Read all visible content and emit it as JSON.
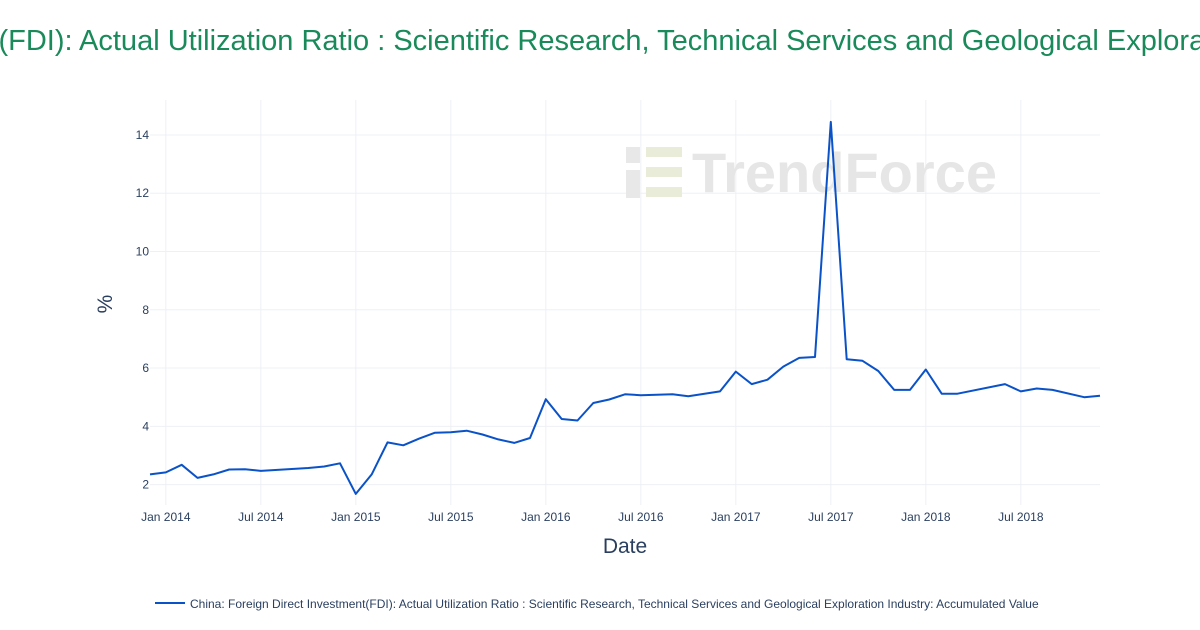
{
  "chart_data": {
    "type": "line",
    "title": "China: Foreign Direct Investment(FDI): Actual Utilization Ratio : Scientific Research, Technical Services and Geological Exploration Industry: Accumulated Value",
    "xlabel": "Date",
    "ylabel": "%",
    "x_tick_labels": [
      "Jan 2014",
      "Jul 2014",
      "Jan 2015",
      "Jul 2015",
      "Jan 2016",
      "Jul 2016",
      "Jan 2017",
      "Jul 2017",
      "Jan 2018",
      "Jul 2018"
    ],
    "y_ticks": [
      2,
      4,
      6,
      8,
      10,
      12,
      14
    ],
    "ylim": [
      1.3,
      15.2
    ],
    "xlim": [
      "2014-01",
      "2018-12"
    ],
    "grid": true,
    "legend_position": "bottom",
    "series": [
      {
        "name": "China: Foreign Direct Investment(FDI): Actual Utilization Ratio : Scientific Research, Technical Services and Geological Exploration Industry: Accumulated Value",
        "color": "#0a52c8",
        "x": [
          "2013-12",
          "2014-01",
          "2014-02",
          "2014-03",
          "2014-04",
          "2014-05",
          "2014-06",
          "2014-07",
          "2014-10",
          "2014-11",
          "2014-12",
          "2015-01",
          "2015-02",
          "2015-03",
          "2015-04",
          "2015-05",
          "2015-06",
          "2015-07",
          "2015-08",
          "2015-09",
          "2015-10",
          "2015-11",
          "2015-12",
          "2016-01",
          "2016-02",
          "2016-03",
          "2016-04",
          "2016-05",
          "2016-06",
          "2016-07",
          "2016-09",
          "2016-10",
          "2016-12",
          "2017-01",
          "2017-02",
          "2017-03",
          "2017-04",
          "2017-05",
          "2017-06",
          "2017-07",
          "2017-08",
          "2017-09",
          "2017-10",
          "2017-11",
          "2017-12",
          "2018-01",
          "2018-02",
          "2018-03",
          "2018-06",
          "2018-07",
          "2018-08",
          "2018-09",
          "2018-11",
          "2018-12"
        ],
        "y": [
          2.35,
          2.42,
          2.68,
          2.23,
          2.35,
          2.52,
          2.53,
          2.47,
          2.57,
          2.62,
          2.73,
          1.68,
          2.35,
          3.45,
          3.35,
          3.58,
          3.78,
          3.8,
          3.85,
          3.72,
          3.55,
          3.43,
          3.6,
          4.93,
          4.25,
          4.2,
          4.8,
          4.92,
          5.1,
          5.07,
          5.1,
          5.03,
          5.2,
          5.88,
          5.45,
          5.6,
          6.05,
          6.35,
          6.38,
          14.45,
          6.3,
          6.25,
          5.9,
          5.25,
          5.25,
          5.95,
          5.12,
          5.12,
          5.45,
          5.2,
          5.3,
          5.25,
          5.0,
          5.05
        ]
      }
    ]
  },
  "watermark": {
    "text": "TrendForce"
  }
}
